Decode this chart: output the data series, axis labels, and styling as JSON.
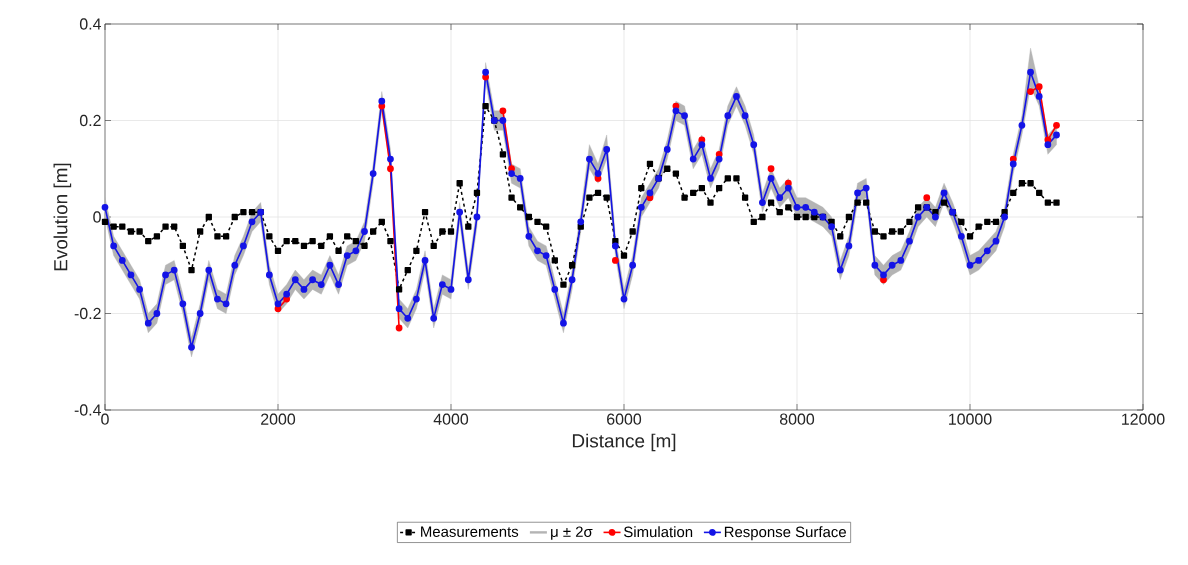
{
  "chart_data": {
    "type": "line",
    "xlabel": "Distance [m]",
    "ylabel": "Evolution [m]",
    "xlim": [
      0,
      12000
    ],
    "ylim": [
      -0.4,
      0.4
    ],
    "xticks": [
      0,
      2000,
      4000,
      6000,
      8000,
      10000,
      12000
    ],
    "yticks": [
      -0.4,
      -0.2,
      0,
      0.2,
      0.4
    ],
    "grid": true,
    "legend": "bottom",
    "x": [
      0,
      100,
      200,
      300,
      400,
      500,
      600,
      700,
      800,
      900,
      1000,
      1100,
      1200,
      1300,
      1400,
      1500,
      1600,
      1700,
      1800,
      1900,
      2000,
      2100,
      2200,
      2300,
      2400,
      2500,
      2600,
      2700,
      2800,
      2900,
      3000,
      3100,
      3200,
      3300,
      3400,
      3500,
      3600,
      3700,
      3800,
      3900,
      4000,
      4100,
      4200,
      4300,
      4400,
      4500,
      4600,
      4700,
      4800,
      4900,
      5000,
      5100,
      5200,
      5300,
      5400,
      5500,
      5600,
      5700,
      5800,
      5900,
      6000,
      6100,
      6200,
      6300,
      6400,
      6500,
      6600,
      6700,
      6800,
      6900,
      7000,
      7100,
      7200,
      7300,
      7400,
      7500,
      7600,
      7700,
      7800,
      7900,
      8000,
      8100,
      8200,
      8300,
      8400,
      8500,
      8600,
      8700,
      8800,
      8900,
      9000,
      9100,
      9200,
      9300,
      9400,
      9500,
      9600,
      9700,
      9800,
      9900,
      10000,
      10100,
      10200,
      10300,
      10400,
      10500,
      10600,
      10700,
      10800,
      10900,
      11000
    ],
    "series": [
      {
        "name": "Measurements",
        "color": "#000000",
        "marker": "square",
        "line_style": "dashed",
        "values": [
          -0.01,
          -0.02,
          -0.02,
          -0.03,
          -0.03,
          -0.05,
          -0.04,
          -0.02,
          -0.02,
          -0.06,
          -0.11,
          -0.03,
          0.0,
          -0.04,
          -0.04,
          0.0,
          0.01,
          0.01,
          0.01,
          -0.04,
          -0.07,
          -0.05,
          -0.05,
          -0.06,
          -0.05,
          -0.06,
          -0.04,
          -0.07,
          -0.04,
          -0.05,
          -0.06,
          -0.03,
          -0.01,
          -0.05,
          -0.15,
          -0.11,
          -0.07,
          0.01,
          -0.06,
          -0.03,
          -0.03,
          0.07,
          -0.02,
          0.05,
          0.23,
          0.2,
          0.13,
          0.04,
          0.02,
          0.0,
          -0.01,
          -0.02,
          -0.09,
          -0.14,
          -0.1,
          -0.02,
          0.04,
          0.05,
          0.04,
          -0.05,
          -0.08,
          -0.03,
          0.06,
          0.11,
          0.08,
          0.1,
          0.09,
          0.04,
          0.05,
          0.06,
          0.03,
          0.06,
          0.08,
          0.08,
          0.04,
          -0.01,
          0.0,
          0.03,
          0.01,
          0.02,
          0.0,
          0.0,
          0.0,
          0.0,
          -0.01,
          -0.04,
          0.0,
          0.03,
          0.03,
          -0.03,
          -0.04,
          -0.03,
          -0.03,
          -0.01,
          0.02,
          0.02,
          0.01,
          0.03,
          0.01,
          -0.01,
          -0.04,
          -0.02,
          -0.01,
          -0.01,
          0.01,
          0.05,
          0.07,
          0.07,
          0.05,
          0.03,
          0.03
        ]
      },
      {
        "name": "μ ± 2σ",
        "color": "#b4b4b4",
        "marker": "none",
        "line_style": "solid",
        "values": [
          null,
          null,
          null,
          null,
          null,
          null,
          null,
          null,
          null,
          null,
          null,
          null,
          null,
          null,
          null,
          null,
          null,
          null,
          null,
          null,
          null,
          null,
          null,
          null,
          null,
          null,
          null,
          null,
          null,
          null,
          null,
          null,
          null,
          null,
          null,
          null,
          null,
          null,
          null,
          null,
          null,
          null,
          null,
          null,
          null,
          null,
          null,
          null,
          null,
          null,
          null,
          null,
          null,
          null,
          null,
          null,
          null,
          null,
          null,
          null,
          null,
          null,
          null,
          null,
          null,
          null,
          null,
          null,
          null,
          null,
          null,
          null,
          null,
          null,
          null,
          null,
          null,
          null,
          null,
          null,
          null,
          null,
          null,
          null,
          null,
          null,
          null,
          null,
          null,
          null,
          null,
          null,
          null,
          null,
          null,
          null,
          null,
          null,
          null,
          null,
          null,
          null,
          null,
          null,
          null,
          null,
          null,
          null,
          null,
          null,
          null
        ],
        "upper": [
          0.04,
          -0.04,
          -0.07,
          -0.1,
          -0.13,
          -0.2,
          -0.18,
          -0.1,
          -0.09,
          -0.16,
          -0.25,
          -0.18,
          -0.09,
          -0.15,
          -0.16,
          -0.08,
          -0.04,
          0.01,
          0.03,
          -0.1,
          -0.16,
          -0.14,
          -0.11,
          -0.13,
          -0.11,
          -0.12,
          -0.08,
          -0.12,
          -0.06,
          -0.05,
          -0.01,
          0.11,
          0.26,
          0.14,
          -0.17,
          -0.19,
          -0.15,
          -0.07,
          -0.19,
          -0.12,
          -0.13,
          0.03,
          -0.11,
          0.02,
          0.32,
          0.22,
          0.22,
          0.11,
          0.1,
          -0.02,
          -0.05,
          -0.06,
          -0.13,
          -0.2,
          -0.11,
          0.01,
          0.15,
          0.11,
          0.17,
          -0.04,
          -0.15,
          -0.08,
          0.04,
          0.07,
          0.1,
          0.16,
          0.24,
          0.23,
          0.14,
          0.17,
          0.1,
          0.14,
          0.23,
          0.27,
          0.23,
          0.17,
          0.05,
          0.1,
          0.06,
          0.08,
          0.04,
          0.04,
          0.03,
          0.02,
          0.0,
          -0.09,
          -0.04,
          0.07,
          0.08,
          -0.08,
          -0.1,
          -0.08,
          -0.07,
          -0.03,
          0.02,
          0.04,
          0.02,
          0.07,
          0.03,
          -0.02,
          -0.08,
          -0.07,
          -0.05,
          -0.03,
          0.02,
          0.13,
          0.21,
          0.35,
          0.27,
          0.17,
          0.19
        ],
        "lower": [
          0.0,
          -0.08,
          -0.11,
          -0.14,
          -0.17,
          -0.24,
          -0.22,
          -0.14,
          -0.13,
          -0.2,
          -0.29,
          -0.22,
          -0.13,
          -0.19,
          -0.2,
          -0.12,
          -0.08,
          -0.03,
          -0.01,
          -0.14,
          -0.2,
          -0.18,
          -0.15,
          -0.17,
          -0.15,
          -0.16,
          -0.12,
          -0.16,
          -0.1,
          -0.09,
          -0.05,
          0.07,
          0.22,
          0.1,
          -0.21,
          -0.23,
          -0.19,
          -0.11,
          -0.23,
          -0.16,
          -0.17,
          -0.01,
          -0.15,
          -0.02,
          0.28,
          0.18,
          0.18,
          0.07,
          0.06,
          -0.06,
          -0.09,
          -0.1,
          -0.17,
          -0.24,
          -0.15,
          -0.03,
          0.1,
          0.07,
          0.12,
          -0.08,
          -0.19,
          -0.12,
          0.0,
          0.03,
          0.06,
          0.12,
          0.2,
          0.19,
          0.1,
          0.13,
          0.06,
          0.1,
          0.19,
          0.23,
          0.19,
          0.13,
          0.01,
          0.06,
          0.02,
          0.04,
          0.0,
          0.0,
          -0.01,
          -0.02,
          -0.04,
          -0.13,
          -0.08,
          0.03,
          0.04,
          -0.12,
          -0.14,
          -0.12,
          -0.11,
          -0.07,
          -0.02,
          0.0,
          -0.02,
          0.03,
          -0.01,
          -0.06,
          -0.12,
          -0.11,
          -0.09,
          -0.07,
          -0.02,
          0.09,
          0.17,
          0.27,
          0.23,
          0.13,
          0.15
        ]
      },
      {
        "name": "Simulation",
        "color": "#ff0000",
        "marker": "circle",
        "line_style": "solid",
        "values": [
          null,
          null,
          null,
          null,
          null,
          null,
          null,
          null,
          null,
          null,
          null,
          null,
          null,
          null,
          null,
          null,
          null,
          null,
          null,
          null,
          -0.19,
          -0.17,
          null,
          null,
          null,
          null,
          null,
          null,
          null,
          null,
          null,
          null,
          0.23,
          0.1,
          -0.23,
          null,
          null,
          null,
          null,
          null,
          null,
          null,
          null,
          null,
          0.29,
          null,
          0.22,
          0.1,
          null,
          null,
          null,
          null,
          null,
          null,
          null,
          null,
          null,
          0.08,
          null,
          -0.09,
          null,
          null,
          null,
          0.04,
          null,
          null,
          0.23,
          null,
          null,
          0.16,
          null,
          0.13,
          null,
          null,
          null,
          null,
          null,
          0.1,
          null,
          0.07,
          null,
          null,
          null,
          null,
          null,
          null,
          null,
          null,
          null,
          null,
          -0.13,
          null,
          null,
          null,
          null,
          0.04,
          null,
          null,
          null,
          null,
          null,
          null,
          null,
          null,
          null,
          0.12,
          null,
          0.26,
          0.27,
          0.16,
          0.19
        ]
      },
      {
        "name": "Response Surface",
        "color": "#1414e6",
        "marker": "circle",
        "line_style": "solid",
        "values": [
          0.02,
          -0.06,
          -0.09,
          -0.12,
          -0.15,
          -0.22,
          -0.2,
          -0.12,
          -0.11,
          -0.18,
          -0.27,
          -0.2,
          -0.11,
          -0.17,
          -0.18,
          -0.1,
          -0.06,
          -0.01,
          0.01,
          -0.12,
          -0.18,
          -0.16,
          -0.13,
          -0.15,
          -0.13,
          -0.14,
          -0.1,
          -0.14,
          -0.08,
          -0.07,
          -0.03,
          0.09,
          0.24,
          0.12,
          -0.19,
          -0.21,
          -0.17,
          -0.09,
          -0.21,
          -0.14,
          -0.15,
          0.01,
          -0.13,
          0.0,
          0.3,
          0.2,
          0.2,
          0.09,
          0.08,
          -0.04,
          -0.07,
          -0.08,
          -0.15,
          -0.22,
          -0.13,
          -0.01,
          0.12,
          0.09,
          0.14,
          -0.06,
          -0.17,
          -0.1,
          0.02,
          0.05,
          0.08,
          0.14,
          0.22,
          0.21,
          0.12,
          0.15,
          0.08,
          0.12,
          0.21,
          0.25,
          0.21,
          0.15,
          0.03,
          0.08,
          0.04,
          0.06,
          0.02,
          0.02,
          0.01,
          0.0,
          -0.02,
          -0.11,
          -0.06,
          0.05,
          0.06,
          -0.1,
          -0.12,
          -0.1,
          -0.09,
          -0.05,
          0.0,
          0.02,
          0.0,
          0.05,
          0.01,
          -0.04,
          -0.1,
          -0.09,
          -0.07,
          -0.05,
          0.0,
          0.11,
          0.19,
          0.3,
          0.25,
          0.15,
          0.17
        ]
      }
    ]
  }
}
